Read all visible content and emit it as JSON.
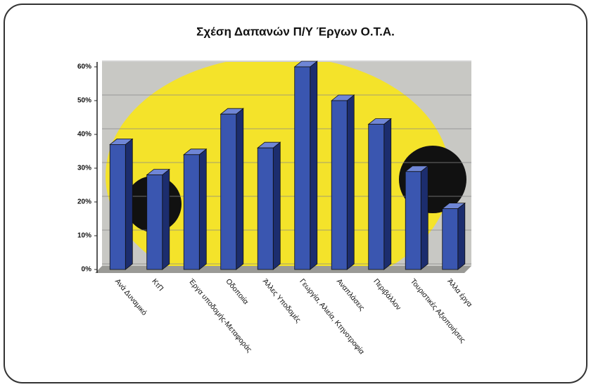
{
  "chart_data": {
    "type": "bar3d",
    "title": "Σχέση Δαπανών Π/Υ Έργων Ο.Τ.Α.",
    "categories": [
      "Ανά Δυναμικό",
      "ΚτΠ",
      "Έργα υποδομής-Μεταφοράς",
      "Οδοποιία",
      "Άλλες Υποδομές",
      "Γεωργία, Αλιεία, Κτηνοτροφία",
      "Αναπλάσεις",
      "Περιβάλλον",
      "Τουριστικές Αξιοποιήσεις",
      "Άλλα έργα"
    ],
    "values": [
      37,
      28,
      34,
      46,
      36,
      60,
      50,
      43,
      29,
      18
    ],
    "color": "#3a56b0",
    "ylim": [
      0,
      60
    ],
    "yticks": [
      {
        "value": 0,
        "label": "0%"
      },
      {
        "value": 10,
        "label": "10%"
      },
      {
        "value": 20,
        "label": "20%"
      },
      {
        "value": 30,
        "label": "30%"
      },
      {
        "value": 40,
        "label": "40%"
      },
      {
        "value": 50,
        "label": "50%"
      },
      {
        "value": 60,
        "label": "60%"
      }
    ],
    "grid": true
  }
}
